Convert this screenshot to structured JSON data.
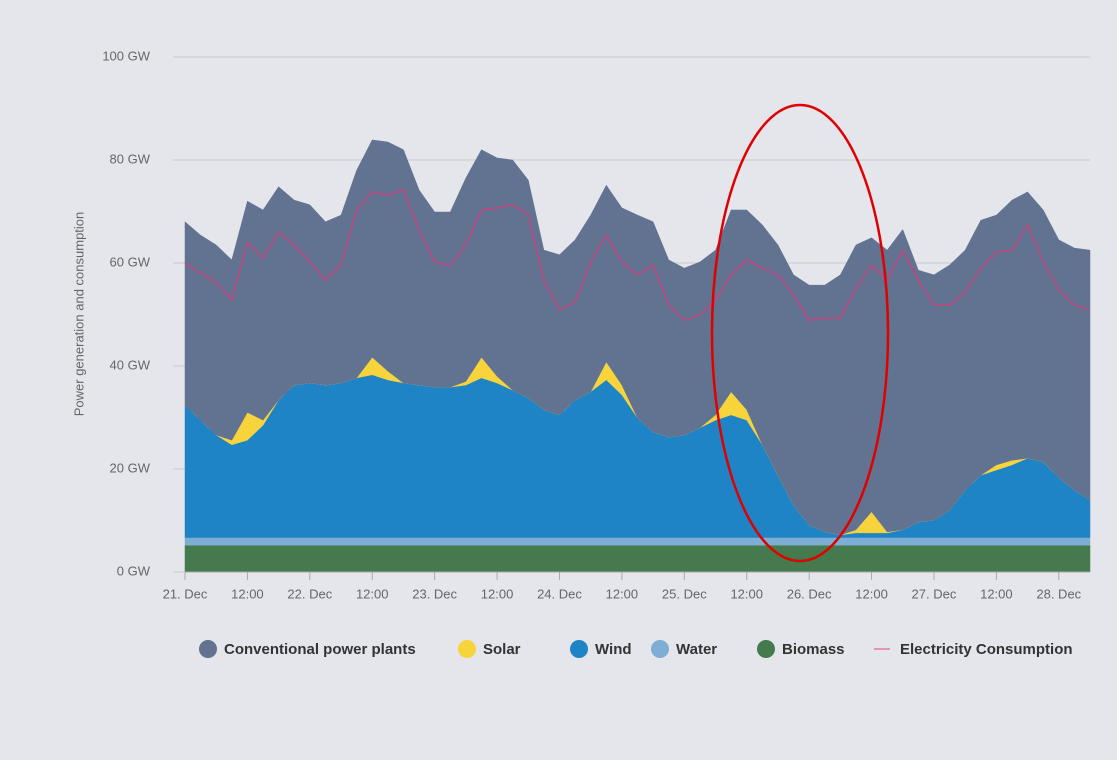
{
  "chart_data": {
    "type": "stacked_area",
    "y_label": "Power generation and consumption",
    "ylim": [
      0,
      100
    ],
    "yticks": [
      {
        "value": 0,
        "label": "0 GW"
      },
      {
        "value": 20,
        "label": "20 GW"
      },
      {
        "value": 40,
        "label": "40 GW"
      },
      {
        "value": 60,
        "label": "60 GW"
      },
      {
        "value": 80,
        "label": "80 GW"
      },
      {
        "value": 100,
        "label": "100 GW"
      }
    ],
    "grid": true,
    "categories": [
      "21. Dec",
      null,
      null,
      null,
      "12:00",
      null,
      null,
      null,
      "22. Dec",
      null,
      null,
      null,
      "12:00",
      null,
      null,
      null,
      "23. Dec",
      null,
      null,
      null,
      "12:00",
      null,
      null,
      null,
      "24. Dec",
      null,
      null,
      null,
      "12:00",
      null,
      null,
      null,
      "25. Dec",
      null,
      null,
      null,
      "12:00",
      null,
      null,
      null,
      "26. Dec",
      null,
      null,
      null,
      "12:00",
      null,
      null,
      null,
      "27. Dec",
      null,
      null,
      null,
      "12:00",
      null,
      null,
      null,
      "28. Dec",
      null,
      null
    ],
    "series": [
      {
        "name": "Biomass",
        "color": "#447a4d",
        "values": [
          5.2,
          5.2,
          5.2,
          5.2,
          5.2,
          5.2,
          5.2,
          5.2,
          5.2,
          5.2,
          5.2,
          5.2,
          5.2,
          5.2,
          5.2,
          5.2,
          5.2,
          5.2,
          5.2,
          5.2,
          5.2,
          5.2,
          5.2,
          5.2,
          5.2,
          5.2,
          5.2,
          5.2,
          5.2,
          5.2,
          5.2,
          5.2,
          5.2,
          5.2,
          5.2,
          5.2,
          5.2,
          5.2,
          5.2,
          5.2,
          5.2,
          5.2,
          5.2,
          5.2,
          5.2,
          5.2,
          5.2,
          5.2,
          5.2,
          5.2,
          5.2,
          5.2,
          5.2,
          5.2,
          5.2,
          5.2,
          5.2,
          5.2,
          5.2
        ]
      },
      {
        "name": "Water",
        "color": "#7eaed4",
        "values": [
          1.5,
          1.5,
          1.5,
          1.5,
          1.5,
          1.5,
          1.5,
          1.5,
          1.5,
          1.5,
          1.5,
          1.5,
          1.5,
          1.5,
          1.5,
          1.5,
          1.5,
          1.5,
          1.5,
          1.5,
          1.5,
          1.5,
          1.5,
          1.5,
          1.5,
          1.5,
          1.5,
          1.5,
          1.5,
          1.5,
          1.5,
          1.5,
          1.5,
          1.5,
          1.5,
          1.5,
          1.5,
          1.5,
          1.5,
          1.5,
          1.5,
          1.5,
          1.5,
          1.5,
          1.5,
          1.5,
          1.5,
          1.5,
          1.5,
          1.5,
          1.5,
          1.5,
          1.5,
          1.5,
          1.5,
          1.5,
          1.5,
          1.5,
          1.5
        ]
      },
      {
        "name": "Wind",
        "color": "#1f84c6",
        "values": [
          25.7,
          22.8,
          19.9,
          18,
          18.9,
          21.8,
          26.7,
          29.6,
          30,
          29.6,
          30,
          31,
          31.6,
          30.6,
          30,
          29.6,
          29.2,
          29.2,
          29.6,
          31,
          30,
          28.6,
          27.1,
          24.8,
          23.8,
          26.7,
          28.3,
          30.6,
          27.7,
          23.2,
          20.5,
          19.5,
          19.9,
          21.3,
          22.8,
          23.8,
          22.8,
          18,
          12.1,
          6.3,
          2.4,
          1.1,
          0.5,
          0.9,
          0.9,
          0.9,
          1.5,
          3,
          3.4,
          5.3,
          9.2,
          12.1,
          13.1,
          14.1,
          15.4,
          14.7,
          11.6,
          9.2,
          7.3
        ]
      },
      {
        "name": "Solar",
        "color": "#f7d33c",
        "values": [
          0,
          0,
          0,
          0.9,
          5.4,
          1,
          0,
          0,
          0,
          0,
          0,
          0,
          3.4,
          1.7,
          0,
          0,
          0,
          0,
          0.7,
          4,
          1.3,
          0,
          0,
          0,
          0,
          0,
          0,
          3.5,
          1.9,
          0,
          0,
          0,
          0,
          0,
          1,
          4.5,
          2,
          0,
          0,
          0,
          0,
          0,
          0,
          0.6,
          4.1,
          0.2,
          0,
          0,
          0,
          0,
          0,
          0,
          1,
          0.9,
          0,
          0,
          0,
          0,
          0
        ]
      },
      {
        "name": "Conventional power plants",
        "color": "#627291",
        "values": [
          35.6,
          35.9,
          36.9,
          35,
          41,
          40.8,
          41.4,
          35.9,
          34.6,
          31.7,
          32.6,
          40.3,
          42.2,
          44.5,
          45.3,
          37.9,
          34,
          34,
          39.5,
          40.3,
          42.4,
          44.7,
          42.3,
          31,
          31.1,
          31.1,
          34.3,
          34.3,
          34.4,
          39.4,
          40.8,
          34.4,
          32.4,
          32.2,
          32,
          35.3,
          38.8,
          42.7,
          44.7,
          44.7,
          46.6,
          47.9,
          50.5,
          55.3,
          53.2,
          54.7,
          58.3,
          48.9,
          47.6,
          47.6,
          46.6,
          49.5,
          48.5,
          50.5,
          51.7,
          48.9,
          46.2,
          47,
          48.5
        ]
      }
    ],
    "line_series": {
      "name": "Electricity Consumption",
      "color": "#c2457f",
      "legend_color": "#e07aa6",
      "values": [
        60,
        58,
        56.3,
        52.8,
        64,
        61,
        66,
        63.5,
        60.2,
        56.7,
        59.6,
        70.3,
        73.8,
        73.2,
        74.2,
        66.4,
        60.2,
        59.6,
        63.5,
        70.3,
        70.7,
        71.3,
        69.3,
        56.7,
        50.9,
        52.4,
        60.2,
        65.4,
        60.2,
        57.7,
        59.6,
        51.8,
        48.9,
        49.9,
        52.8,
        57.7,
        60.6,
        59,
        57.7,
        53.8,
        48.9,
        49.3,
        49.3,
        55.1,
        59.6,
        56.7,
        62.5,
        56.7,
        51.8,
        51.8,
        54.4,
        59,
        62.1,
        62.5,
        67.4,
        60.2,
        54.8,
        51.8,
        50.9
      ]
    },
    "legend_order": [
      4,
      3,
      2,
      1,
      0
    ]
  }
}
